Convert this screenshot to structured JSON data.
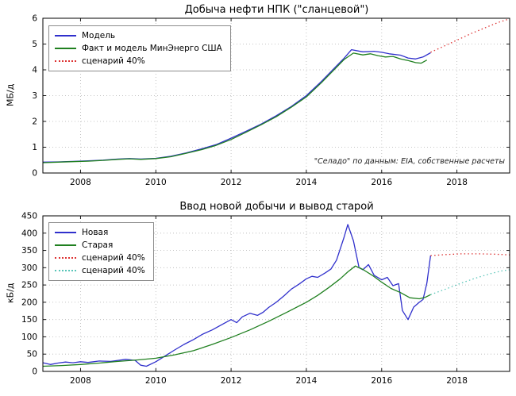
{
  "figure": {
    "background": "#ffffff",
    "grid_color": "#b3b3b3",
    "frame_color": "#000000"
  },
  "chart_data": [
    {
      "type": "line",
      "title": "Добыча нефти НПК (\"сланцевой\")",
      "ylabel": "МБ/д",
      "xlabel": "",
      "xlim": [
        2007.0,
        2019.4
      ],
      "ylim": [
        0,
        6
      ],
      "xticks": [
        2008,
        2010,
        2012,
        2014,
        2016,
        2018
      ],
      "yticks": [
        0,
        1,
        2,
        3,
        4,
        5,
        6
      ],
      "grid": true,
      "legend_position": "upper-left",
      "annotation": "\"Селадо\" по данным: EIA, собственные расчеты",
      "series": [
        {
          "name": "Модель",
          "color": "#3030cc",
          "line_style": "solid",
          "x": [
            2007.0,
            2007.4,
            2007.8,
            2008.2,
            2008.6,
            2009.0,
            2009.3,
            2009.6,
            2010.0,
            2010.4,
            2010.8,
            2011.2,
            2011.6,
            2012.0,
            2012.4,
            2012.8,
            2013.2,
            2013.6,
            2014.0,
            2014.4,
            2014.8,
            2015.0,
            2015.2,
            2015.5,
            2015.8,
            2016.0,
            2016.2,
            2016.5,
            2016.7,
            2016.9,
            2017.1,
            2017.3
          ],
          "y": [
            0.42,
            0.43,
            0.45,
            0.47,
            0.5,
            0.54,
            0.56,
            0.54,
            0.57,
            0.65,
            0.78,
            0.93,
            1.1,
            1.35,
            1.62,
            1.9,
            2.22,
            2.58,
            3.0,
            3.55,
            4.15,
            4.45,
            4.78,
            4.7,
            4.72,
            4.68,
            4.62,
            4.57,
            4.46,
            4.42,
            4.5,
            4.66
          ]
        },
        {
          "name": "Факт и модель МинЭнерго США",
          "color": "#208020",
          "line_style": "solid",
          "x": [
            2007.0,
            2007.4,
            2007.8,
            2008.2,
            2008.6,
            2009.0,
            2009.3,
            2009.6,
            2010.0,
            2010.4,
            2010.8,
            2011.2,
            2011.6,
            2012.0,
            2012.4,
            2012.8,
            2013.2,
            2013.6,
            2014.0,
            2014.4,
            2014.8,
            2015.0,
            2015.25,
            2015.5,
            2015.7,
            2015.9,
            2016.1,
            2016.3,
            2016.5,
            2016.7,
            2016.9,
            2017.05,
            2017.2
          ],
          "y": [
            0.4,
            0.42,
            0.44,
            0.46,
            0.49,
            0.53,
            0.55,
            0.53,
            0.56,
            0.63,
            0.76,
            0.9,
            1.07,
            1.3,
            1.58,
            1.87,
            2.18,
            2.55,
            2.95,
            3.5,
            4.1,
            4.4,
            4.65,
            4.58,
            4.62,
            4.55,
            4.5,
            4.52,
            4.42,
            4.36,
            4.28,
            4.26,
            4.38
          ]
        },
        {
          "name": "сценарий 40%",
          "color": "#dd3333",
          "line_style": "dotted",
          "x": [
            2017.3,
            2017.6,
            2018.0,
            2018.4,
            2018.8,
            2019.1,
            2019.4
          ],
          "y": [
            4.68,
            4.88,
            5.15,
            5.42,
            5.66,
            5.84,
            5.98
          ]
        }
      ]
    },
    {
      "type": "line",
      "title": "Ввод новой добычи и вывод старой",
      "ylabel": "кБ/д",
      "xlabel": "",
      "xlim": [
        2007.0,
        2019.4
      ],
      "ylim": [
        0,
        450
      ],
      "xticks": [
        2008,
        2010,
        2012,
        2014,
        2016,
        2018
      ],
      "yticks": [
        0,
        50,
        100,
        150,
        200,
        250,
        300,
        350,
        400,
        450
      ],
      "grid": true,
      "legend_position": "upper-left",
      "annotation": "",
      "series": [
        {
          "name": "Новая",
          "color": "#3030cc",
          "line_style": "solid",
          "x": [
            2007.0,
            2007.2,
            2007.4,
            2007.6,
            2007.8,
            2008.0,
            2008.2,
            2008.5,
            2008.8,
            2009.0,
            2009.2,
            2009.45,
            2009.6,
            2009.75,
            2010.0,
            2010.25,
            2010.5,
            2010.75,
            2011.0,
            2011.25,
            2011.5,
            2011.75,
            2012.0,
            2012.15,
            2012.3,
            2012.5,
            2012.7,
            2012.85,
            2013.0,
            2013.2,
            2013.4,
            2013.6,
            2013.8,
            2014.0,
            2014.15,
            2014.3,
            2014.5,
            2014.65,
            2014.8,
            2015.0,
            2015.1,
            2015.25,
            2015.4,
            2015.5,
            2015.65,
            2015.8,
            2016.0,
            2016.15,
            2016.3,
            2016.45,
            2016.55,
            2016.7,
            2016.85,
            2017.0,
            2017.1,
            2017.2,
            2017.3
          ],
          "y": [
            25,
            20,
            24,
            27,
            25,
            28,
            26,
            30,
            29,
            32,
            35,
            32,
            18,
            15,
            28,
            45,
            62,
            78,
            92,
            108,
            120,
            135,
            150,
            141,
            158,
            168,
            162,
            171,
            185,
            200,
            218,
            238,
            252,
            268,
            275,
            272,
            285,
            296,
            322,
            388,
            425,
            378,
            300,
            294,
            309,
            278,
            265,
            272,
            248,
            254,
            176,
            150,
            186,
            200,
            208,
            255,
            335
          ]
        },
        {
          "name": "Старая",
          "color": "#208020",
          "line_style": "solid",
          "x": [
            2007.0,
            2007.5,
            2008.0,
            2008.5,
            2009.0,
            2009.5,
            2010.0,
            2010.5,
            2011.0,
            2011.5,
            2012.0,
            2012.5,
            2013.0,
            2013.5,
            2014.0,
            2014.3,
            2014.6,
            2014.9,
            2015.1,
            2015.3,
            2015.5,
            2015.75,
            2016.0,
            2016.25,
            2016.5,
            2016.75,
            2017.0,
            2017.15,
            2017.3
          ],
          "y": [
            15,
            17,
            20,
            24,
            29,
            33,
            38,
            48,
            60,
            78,
            98,
            120,
            145,
            172,
            200,
            220,
            243,
            268,
            288,
            305,
            295,
            278,
            258,
            240,
            228,
            213,
            210,
            214,
            222
          ]
        },
        {
          "name": "сценарий 40%",
          "color": "#dd3333",
          "line_style": "dotted",
          "x": [
            2017.3,
            2017.7,
            2018.1,
            2018.6,
            2019.0,
            2019.4
          ],
          "y": [
            335,
            338,
            340,
            340,
            339,
            337
          ]
        },
        {
          "name": "сценарий 40%",
          "color": "#58c5b8",
          "line_style": "dotted",
          "x": [
            2017.3,
            2017.7,
            2018.1,
            2018.5,
            2018.9,
            2019.2,
            2019.4
          ],
          "y": [
            222,
            238,
            255,
            270,
            283,
            291,
            294
          ]
        }
      ]
    }
  ]
}
